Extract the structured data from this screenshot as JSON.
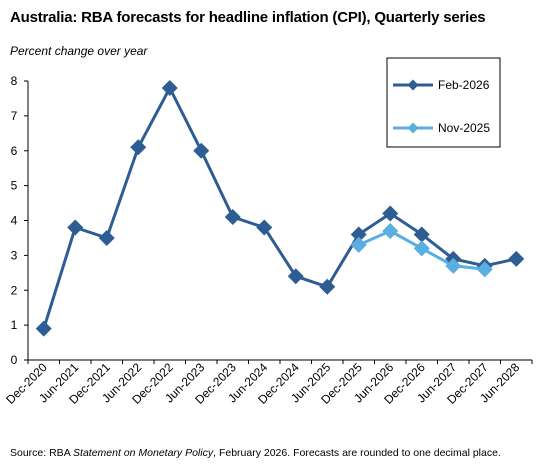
{
  "title": "Australia: RBA forecasts for headline inflation (CPI), Quarterly series",
  "subtitle": "Percent change over year",
  "source": {
    "prefix": "Source: RBA ",
    "italic": "Statement on Monetary Policy",
    "suffix": ", February 2026. Forecasts are rounded to one decimal place."
  },
  "chart_data": {
    "type": "line",
    "categories": [
      "Dec-2020",
      "Jun-2021",
      "Dec-2021",
      "Jun-2022",
      "Dec-2022",
      "Jun-2023",
      "Dec-2023",
      "Jun-2024",
      "Dec-2024",
      "Jun-2025",
      "Dec-2025",
      "Jun-2026",
      "Dec-2026",
      "Jun-2027",
      "Dec-2027",
      "Jun-2028"
    ],
    "title": "Australia: RBA forecasts for headline inflation (CPI), Quarterly series",
    "ylabel": "Percent change over year",
    "ylim": [
      0,
      8
    ],
    "yticks": [
      0,
      1,
      2,
      3,
      4,
      5,
      6,
      7,
      8
    ],
    "grid": false,
    "legend_placement": "top-right",
    "series": [
      {
        "name": "Feb-2026",
        "color": "#2e5d94",
        "marker": "diamond",
        "values": [
          0.9,
          3.8,
          3.5,
          6.1,
          7.8,
          6.0,
          4.1,
          3.8,
          2.4,
          2.1,
          3.6,
          4.2,
          3.6,
          2.9,
          2.7,
          2.9
        ]
      },
      {
        "name": "Nov-2025",
        "color": "#5aaee0",
        "marker": "diamond",
        "values": [
          null,
          null,
          null,
          null,
          null,
          null,
          null,
          null,
          null,
          null,
          3.3,
          3.7,
          3.2,
          2.7,
          2.6,
          null
        ]
      }
    ]
  }
}
